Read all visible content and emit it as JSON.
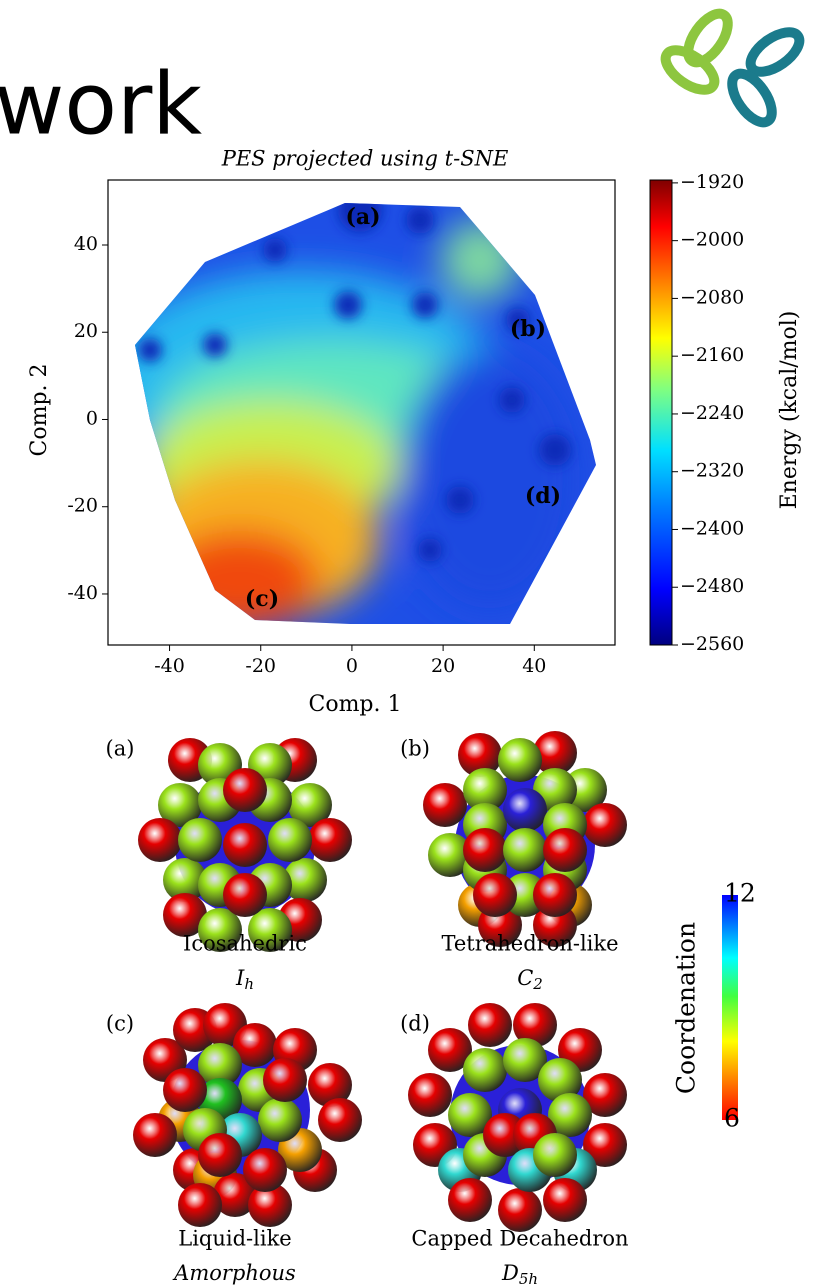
{
  "header": {
    "title": "work"
  },
  "figure": {
    "title": "PES projected using t-SNE",
    "x_label": "Comp. 1",
    "y_label": "Comp. 2",
    "xlim": [
      -53.5,
      57.7
    ],
    "ylim": [
      -51.7,
      54.9
    ],
    "xticks": [
      -40,
      -20,
      0,
      20,
      40
    ],
    "yticks": [
      40,
      20,
      0,
      -20,
      -40
    ],
    "region_labels": [
      "(a)",
      "(b)",
      "(c)",
      "(d)"
    ],
    "colorbar": {
      "label": "Energy (kcal/mol)",
      "lim": [
        -2560,
        -1916
      ],
      "ticks": [
        {
          "value": -1920,
          "label": "−1920"
        },
        {
          "value": -2000,
          "label": "−2000"
        },
        {
          "value": -2080,
          "label": "−2080"
        },
        {
          "value": -2160,
          "label": "−2160"
        },
        {
          "value": -2240,
          "label": "−2240"
        },
        {
          "value": -2320,
          "label": "−2320"
        },
        {
          "value": -2400,
          "label": "−2400"
        },
        {
          "value": -2480,
          "label": "−2480"
        },
        {
          "value": -2560,
          "label": "−2560"
        }
      ]
    }
  },
  "structures": [
    {
      "panel": "(a)",
      "name": "Icosahedric",
      "symmetry": "I",
      "symmetry_sub": "h"
    },
    {
      "panel": "(b)",
      "name": "Tetrahedron-like",
      "symmetry": "C",
      "symmetry_sub": "2"
    },
    {
      "panel": "(c)",
      "name": "Liquid-like",
      "symmetry": "Amorphous"
    },
    {
      "panel": "(d)",
      "name": "Capped Decahedron",
      "symmetry": "D",
      "symmetry_sub": "5h"
    }
  ],
  "coordination_bar": {
    "label": "Coordenation",
    "lim": [
      6,
      12
    ],
    "ticks": [
      12,
      6
    ]
  }
}
